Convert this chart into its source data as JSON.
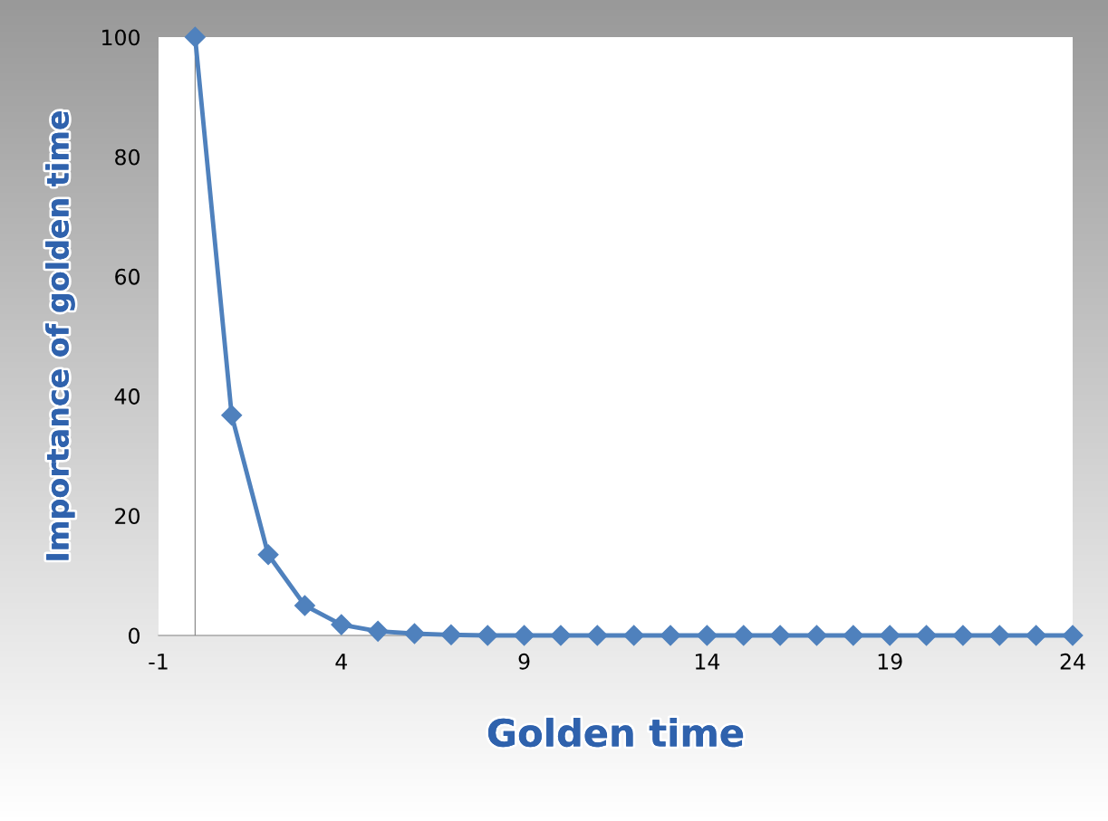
{
  "chart_data": {
    "type": "line",
    "xlabel": "Golden time",
    "ylabel": "Importance of golden time",
    "x": [
      0,
      1,
      2,
      3,
      4,
      5,
      6,
      7,
      8,
      9,
      10,
      11,
      12,
      13,
      14,
      15,
      16,
      17,
      18,
      19,
      20,
      21,
      22,
      23,
      24
    ],
    "series": [
      {
        "color": "#4f81bd",
        "values": [
          100,
          36.8,
          13.5,
          5,
          1.8,
          0.7,
          0.3,
          0.1,
          0,
          0,
          0,
          0,
          0,
          0,
          0,
          0,
          0,
          0,
          0,
          0,
          0,
          0,
          0,
          0,
          0
        ]
      }
    ],
    "xlim": [
      -1,
      24
    ],
    "xticks": [
      -1,
      4,
      9,
      14,
      19,
      24
    ],
    "ylim": [
      0,
      100
    ],
    "yticks": [
      0,
      20,
      40,
      60,
      80,
      100
    ],
    "ref_lines": [
      {
        "axis": "x",
        "value": 0,
        "label": null,
        "color": "#808080"
      }
    ],
    "marker": "diamond",
    "line_style": "solid",
    "grid": false,
    "legend": false
  }
}
